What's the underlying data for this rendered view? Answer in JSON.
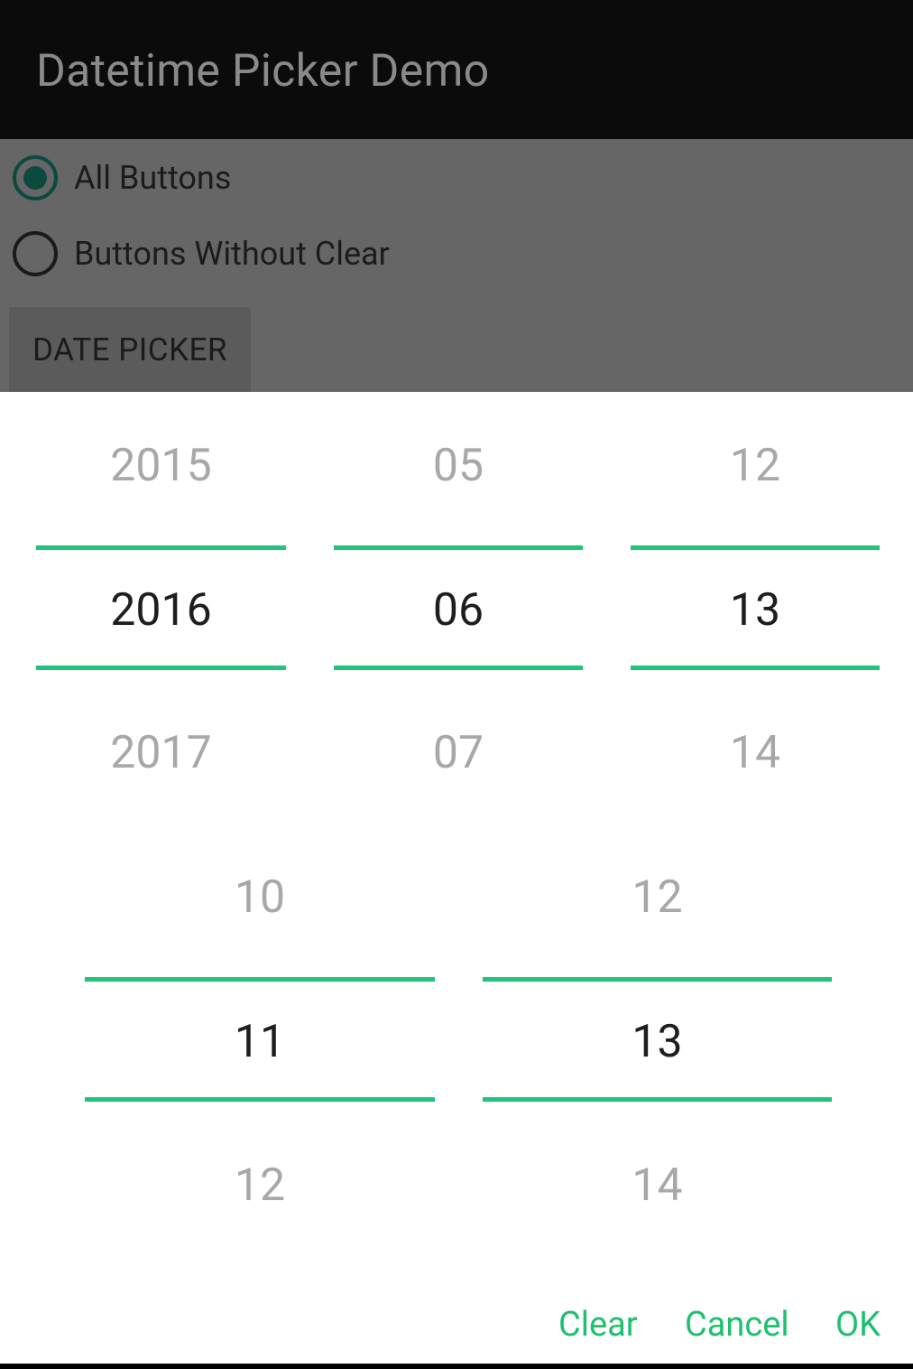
{
  "app": {
    "title": "Datetime Picker Demo"
  },
  "options": {
    "all_buttons": "All Buttons",
    "without_clear": "Buttons Without Clear"
  },
  "date_picker_button": "DATE PICKER",
  "date_picker": {
    "year": {
      "prev": "2015",
      "selected": "2016",
      "next": "2017"
    },
    "month": {
      "prev": "05",
      "selected": "06",
      "next": "07"
    },
    "day": {
      "prev": "12",
      "selected": "13",
      "next": "14"
    }
  },
  "time_picker": {
    "hour": {
      "prev": "10",
      "selected": "11",
      "next": "12"
    },
    "minute": {
      "prev": "12",
      "selected": "13",
      "next": "14"
    }
  },
  "actions": {
    "clear": "Clear",
    "cancel": "Cancel",
    "ok": "OK"
  },
  "colors": {
    "accent": "#20c47a",
    "radio_checked": "#0c4a3f"
  }
}
